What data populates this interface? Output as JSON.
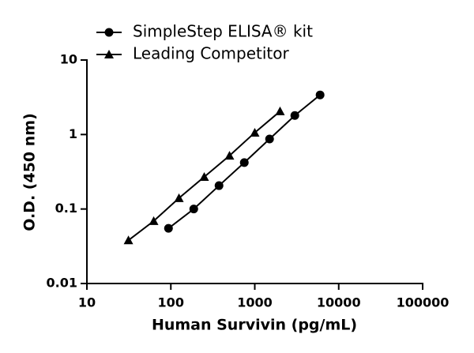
{
  "chart_data": {
    "type": "line",
    "x_label": "Human Survivin (pg/mL)",
    "y_label": "O.D. (450 nm)",
    "xscale": "log",
    "yscale": "log",
    "xlim": [
      10,
      100000
    ],
    "xticks": [
      10,
      100,
      1000,
      10000,
      100000
    ],
    "ylim": [
      0.01,
      10
    ],
    "yticks": [
      0.01,
      0.1,
      1,
      10
    ],
    "legend": "upper left",
    "series": [
      {
        "name": "SimpleStep ELISA® kit",
        "color": "#000000",
        "marker": "circle",
        "x": [
          93.75,
          187.5,
          375,
          750,
          1500,
          3000,
          6000
        ],
        "values": [
          0.055,
          0.1,
          0.206,
          0.42,
          0.87,
          1.8,
          3.4
        ]
      },
      {
        "name": "Leading Competitor",
        "color": "#000000",
        "marker": "triangle",
        "x": [
          31.25,
          62.5,
          125,
          250,
          500,
          1000,
          2000
        ],
        "values": [
          0.038,
          0.069,
          0.14,
          0.27,
          0.52,
          1.06,
          2.05
        ]
      }
    ]
  }
}
